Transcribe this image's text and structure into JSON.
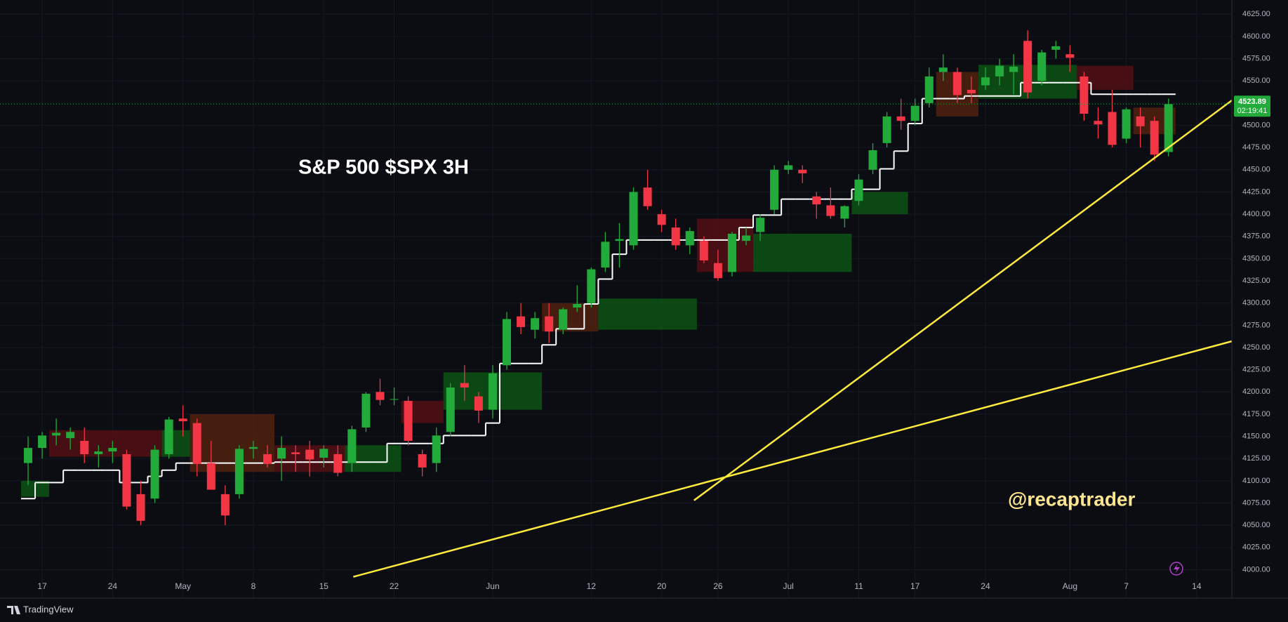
{
  "chart_data": {
    "type": "candlestick",
    "title": "S&P 500 $SPX 3H",
    "annotation": "@recaptrader",
    "categories": [
      null,
      "17",
      null,
      null,
      null,
      null,
      "24",
      null,
      null,
      null,
      null,
      "May",
      null,
      null,
      null,
      null,
      "8",
      null,
      null,
      null,
      null,
      "15",
      null,
      null,
      null,
      null,
      "22",
      null,
      null,
      null,
      null,
      null,
      null,
      "Jun",
      null,
      null,
      null,
      null,
      null,
      null,
      "12",
      null,
      null,
      null,
      null,
      "20",
      null,
      null,
      null,
      "26",
      null,
      null,
      null,
      null,
      "Jul",
      null,
      null,
      null,
      null,
      "11",
      null,
      null,
      null,
      "17",
      null,
      null,
      null,
      null,
      "24",
      null,
      null,
      null,
      null,
      null,
      "Aug",
      null,
      null,
      null,
      "7",
      null,
      null,
      null,
      null,
      "14",
      null,
      null
    ],
    "open": [
      4120,
      4137,
      4151,
      4148,
      4145,
      4130,
      4133,
      4130,
      4085,
      4080,
      4130,
      4170,
      4165,
      4120,
      4085,
      4085,
      4136,
      4130,
      4125,
      4132,
      4135,
      4126,
      4130,
      4120,
      4160,
      4200,
      4192,
      4190,
      4130,
      4120,
      4155,
      4210,
      4195,
      4180,
      4230,
      4285,
      4270,
      4285,
      4270,
      4295,
      4300,
      4340,
      4370,
      4365,
      4430,
      4400,
      4385,
      4365,
      4370,
      4345,
      4335,
      4370,
      4380,
      4405,
      4450,
      4450,
      4420,
      4410,
      4395,
      4415,
      4450,
      4480,
      4510,
      4505,
      4525,
      4560,
      4560,
      4540,
      4545,
      4555,
      4560,
      4595,
      4550,
      4585,
      4580,
      4555,
      4505,
      4515,
      4485,
      4510,
      4505,
      4470,
      null,
      null,
      null,
      null
    ],
    "high": [
      4150,
      4155,
      4170,
      4160,
      4160,
      4140,
      4145,
      4135,
      4100,
      4140,
      4172,
      4185,
      4170,
      4145,
      4095,
      4140,
      4145,
      4140,
      4150,
      4140,
      4145,
      4140,
      4140,
      4162,
      4200,
      4215,
      4205,
      4195,
      4135,
      4160,
      4210,
      4230,
      4200,
      4230,
      4290,
      4300,
      4290,
      4300,
      4295,
      4320,
      4340,
      4380,
      4390,
      4430,
      4450,
      4405,
      4395,
      4385,
      4375,
      4360,
      4380,
      4385,
      4400,
      4455,
      4460,
      4455,
      4425,
      4430,
      4410,
      4445,
      4480,
      4515,
      4530,
      4530,
      4565,
      4580,
      4565,
      4555,
      4565,
      4575,
      4580,
      4607,
      4585,
      4595,
      4590,
      4560,
      4520,
      4540,
      4520,
      4520,
      4510,
      4530,
      null,
      null,
      null,
      null
    ],
    "low": [
      4095,
      4125,
      4140,
      4135,
      4120,
      4115,
      4120,
      4068,
      4050,
      4075,
      4125,
      4150,
      4105,
      4090,
      4050,
      4080,
      4125,
      4115,
      4100,
      4110,
      4105,
      4115,
      4105,
      4110,
      4155,
      4185,
      4185,
      4140,
      4105,
      4110,
      4150,
      4190,
      4165,
      4170,
      4225,
      4265,
      4260,
      4255,
      4265,
      4290,
      4295,
      4335,
      4340,
      4360,
      4405,
      4380,
      4360,
      4355,
      4345,
      4325,
      4330,
      4365,
      4370,
      4400,
      4445,
      4435,
      4395,
      4395,
      4385,
      4410,
      4445,
      4475,
      4495,
      4500,
      4520,
      4550,
      4525,
      4525,
      4540,
      4545,
      4535,
      4530,
      4545,
      4575,
      4560,
      4505,
      4485,
      4475,
      4480,
      4475,
      4460,
      4465,
      null,
      null,
      null,
      null
    ],
    "close": [
      4137,
      4151,
      4154,
      4155,
      4130,
      4133,
      4137,
      4071,
      4055,
      4135,
      4169,
      4167,
      4119,
      4090,
      4061,
      4136,
      4138,
      4119,
      4137,
      4130,
      4124,
      4136,
      4109,
      4158,
      4198,
      4191,
      4192,
      4145,
      4115,
      4151,
      4205,
      4205,
      4179,
      4221,
      4282,
      4273,
      4283,
      4268,
      4293,
      4299,
      4338,
      4369,
      4372,
      4425,
      4409,
      4388,
      4365,
      4381,
      4348,
      4328,
      4378,
      4376,
      4396,
      4450,
      4455,
      4446,
      4411,
      4398,
      4409,
      4439,
      4472,
      4510,
      4505,
      4522,
      4555,
      4565,
      4534,
      4536,
      4554,
      4567,
      4566,
      4537,
      4582,
      4589,
      4576,
      4513,
      4501,
      4478,
      4518,
      4499,
      4467,
      4523.89,
      null,
      null,
      null,
      null
    ],
    "up_color": "#22ab3a",
    "down_color": "#f23645",
    "baseline": {
      "color": "#ffffff",
      "values": [
        4080,
        4098,
        4098,
        4112,
        4112,
        4112,
        4112,
        4098,
        4098,
        4105,
        4112,
        4120,
        4120,
        4120,
        4120,
        4120,
        4120,
        4120,
        4121,
        4121,
        4121,
        4121,
        4121,
        4121,
        4121,
        4121,
        4142,
        4142,
        4142,
        4142,
        4151,
        4151,
        4151,
        4165,
        4232,
        4232,
        4232,
        4253,
        4271,
        4271,
        4299,
        4327,
        4355,
        4371,
        4371,
        4371,
        4371,
        4371,
        4371,
        4371,
        4371,
        4385,
        4399,
        4399,
        4417,
        4417,
        4417,
        4417,
        4417,
        4428,
        4428,
        4451,
        4471,
        4502,
        4530,
        4530,
        4530,
        4533,
        4533,
        4533,
        4533,
        4548,
        4548,
        4548,
        4548,
        4548,
        4535,
        4535,
        4535,
        4535,
        4535,
        4535,
        null,
        null,
        null,
        null
      ]
    },
    "zones": [
      {
        "from": 0,
        "to": 2,
        "low": 4082,
        "high": 4100,
        "color": "#0e5c14"
      },
      {
        "from": 2,
        "to": 10,
        "low": 4127,
        "high": 4157,
        "color": "#5c0f14"
      },
      {
        "from": 10,
        "to": 12,
        "low": 4127,
        "high": 4157,
        "color": "#0e5c14"
      },
      {
        "from": 12,
        "to": 18,
        "low": 4110,
        "high": 4175,
        "color": "#5a2410"
      },
      {
        "from": 18,
        "to": 23,
        "low": 4110,
        "high": 4140,
        "color": "#5c0f14"
      },
      {
        "from": 23,
        "to": 27,
        "low": 4110,
        "high": 4140,
        "color": "#0e5c14"
      },
      {
        "from": 27,
        "to": 30,
        "low": 4165,
        "high": 4190,
        "color": "#5c0f14"
      },
      {
        "from": 30,
        "to": 37,
        "low": 4180,
        "high": 4222,
        "color": "#0e5c14"
      },
      {
        "from": 37,
        "to": 41,
        "low": 4268,
        "high": 4300,
        "color": "#5a2410"
      },
      {
        "from": 41,
        "to": 48,
        "low": 4270,
        "high": 4305,
        "color": "#0e5c14"
      },
      {
        "from": 48,
        "to": 52,
        "low": 4335,
        "high": 4395,
        "color": "#5c0f14"
      },
      {
        "from": 52,
        "to": 59,
        "low": 4335,
        "high": 4378,
        "color": "#0e5c14"
      },
      {
        "from": 59,
        "to": 63,
        "low": 4400,
        "high": 4425,
        "color": "#0e5c14"
      },
      {
        "from": 65,
        "to": 68,
        "low": 4510,
        "high": 4560,
        "color": "#5a2410"
      },
      {
        "from": 68,
        "to": 75,
        "low": 4530,
        "high": 4568,
        "color": "#0e5c14"
      },
      {
        "from": 75,
        "to": 79,
        "low": 4540,
        "high": 4567,
        "color": "#5c0f14"
      },
      {
        "from": 79,
        "to": 82,
        "low": 4490,
        "high": 4520,
        "color": "#5a2410"
      }
    ],
    "trendlines": [
      {
        "x": [
          23.1,
          85.5
        ],
        "y": [
          3992,
          4257
        ],
        "color": "#ffeb3b"
      },
      {
        "x": [
          47.3,
          85.5
        ],
        "y": [
          4078,
          4528
        ],
        "color": "#ffeb3b"
      }
    ],
    "last_price_countdown": "02:19:41",
    "ylim": [
      3968,
      4641
    ],
    "yticks": [
      {
        "value": 4000,
        "label": "4000.00"
      },
      {
        "value": 4025,
        "label": "4025.00"
      },
      {
        "value": 4050,
        "label": "4050.00"
      },
      {
        "value": 4075,
        "label": "4075.00"
      },
      {
        "value": 4100,
        "label": "4100.00"
      },
      {
        "value": 4125,
        "label": "4125.00"
      },
      {
        "value": 4150,
        "label": "4150.00"
      },
      {
        "value": 4175,
        "label": "4175.00"
      },
      {
        "value": 4200,
        "label": "4200.00"
      },
      {
        "value": 4225,
        "label": "4225.00"
      },
      {
        "value": 4250,
        "label": "4250.00"
      },
      {
        "value": 4275,
        "label": "4275.00"
      },
      {
        "value": 4300,
        "label": "4300.00"
      },
      {
        "value": 4325,
        "label": "4325.00"
      },
      {
        "value": 4350,
        "label": "4350.00"
      },
      {
        "value": 4375,
        "label": "4375.00"
      },
      {
        "value": 4400,
        "label": "4400.00"
      },
      {
        "value": 4425,
        "label": "4425.00"
      },
      {
        "value": 4450,
        "label": "4450.00"
      },
      {
        "value": 4475,
        "label": "4475.00"
      },
      {
        "value": 4500,
        "label": "4500.00"
      },
      {
        "value": 4525,
        "label": "4525.00"
      },
      {
        "value": 4550,
        "label": "4550.00"
      },
      {
        "value": 4575,
        "label": "4575.00"
      },
      {
        "value": 4600,
        "label": "4600.00"
      },
      {
        "value": 4625,
        "label": "4625.00"
      }
    ],
    "grid": true
  },
  "footer": {
    "brand": "TradingView"
  }
}
